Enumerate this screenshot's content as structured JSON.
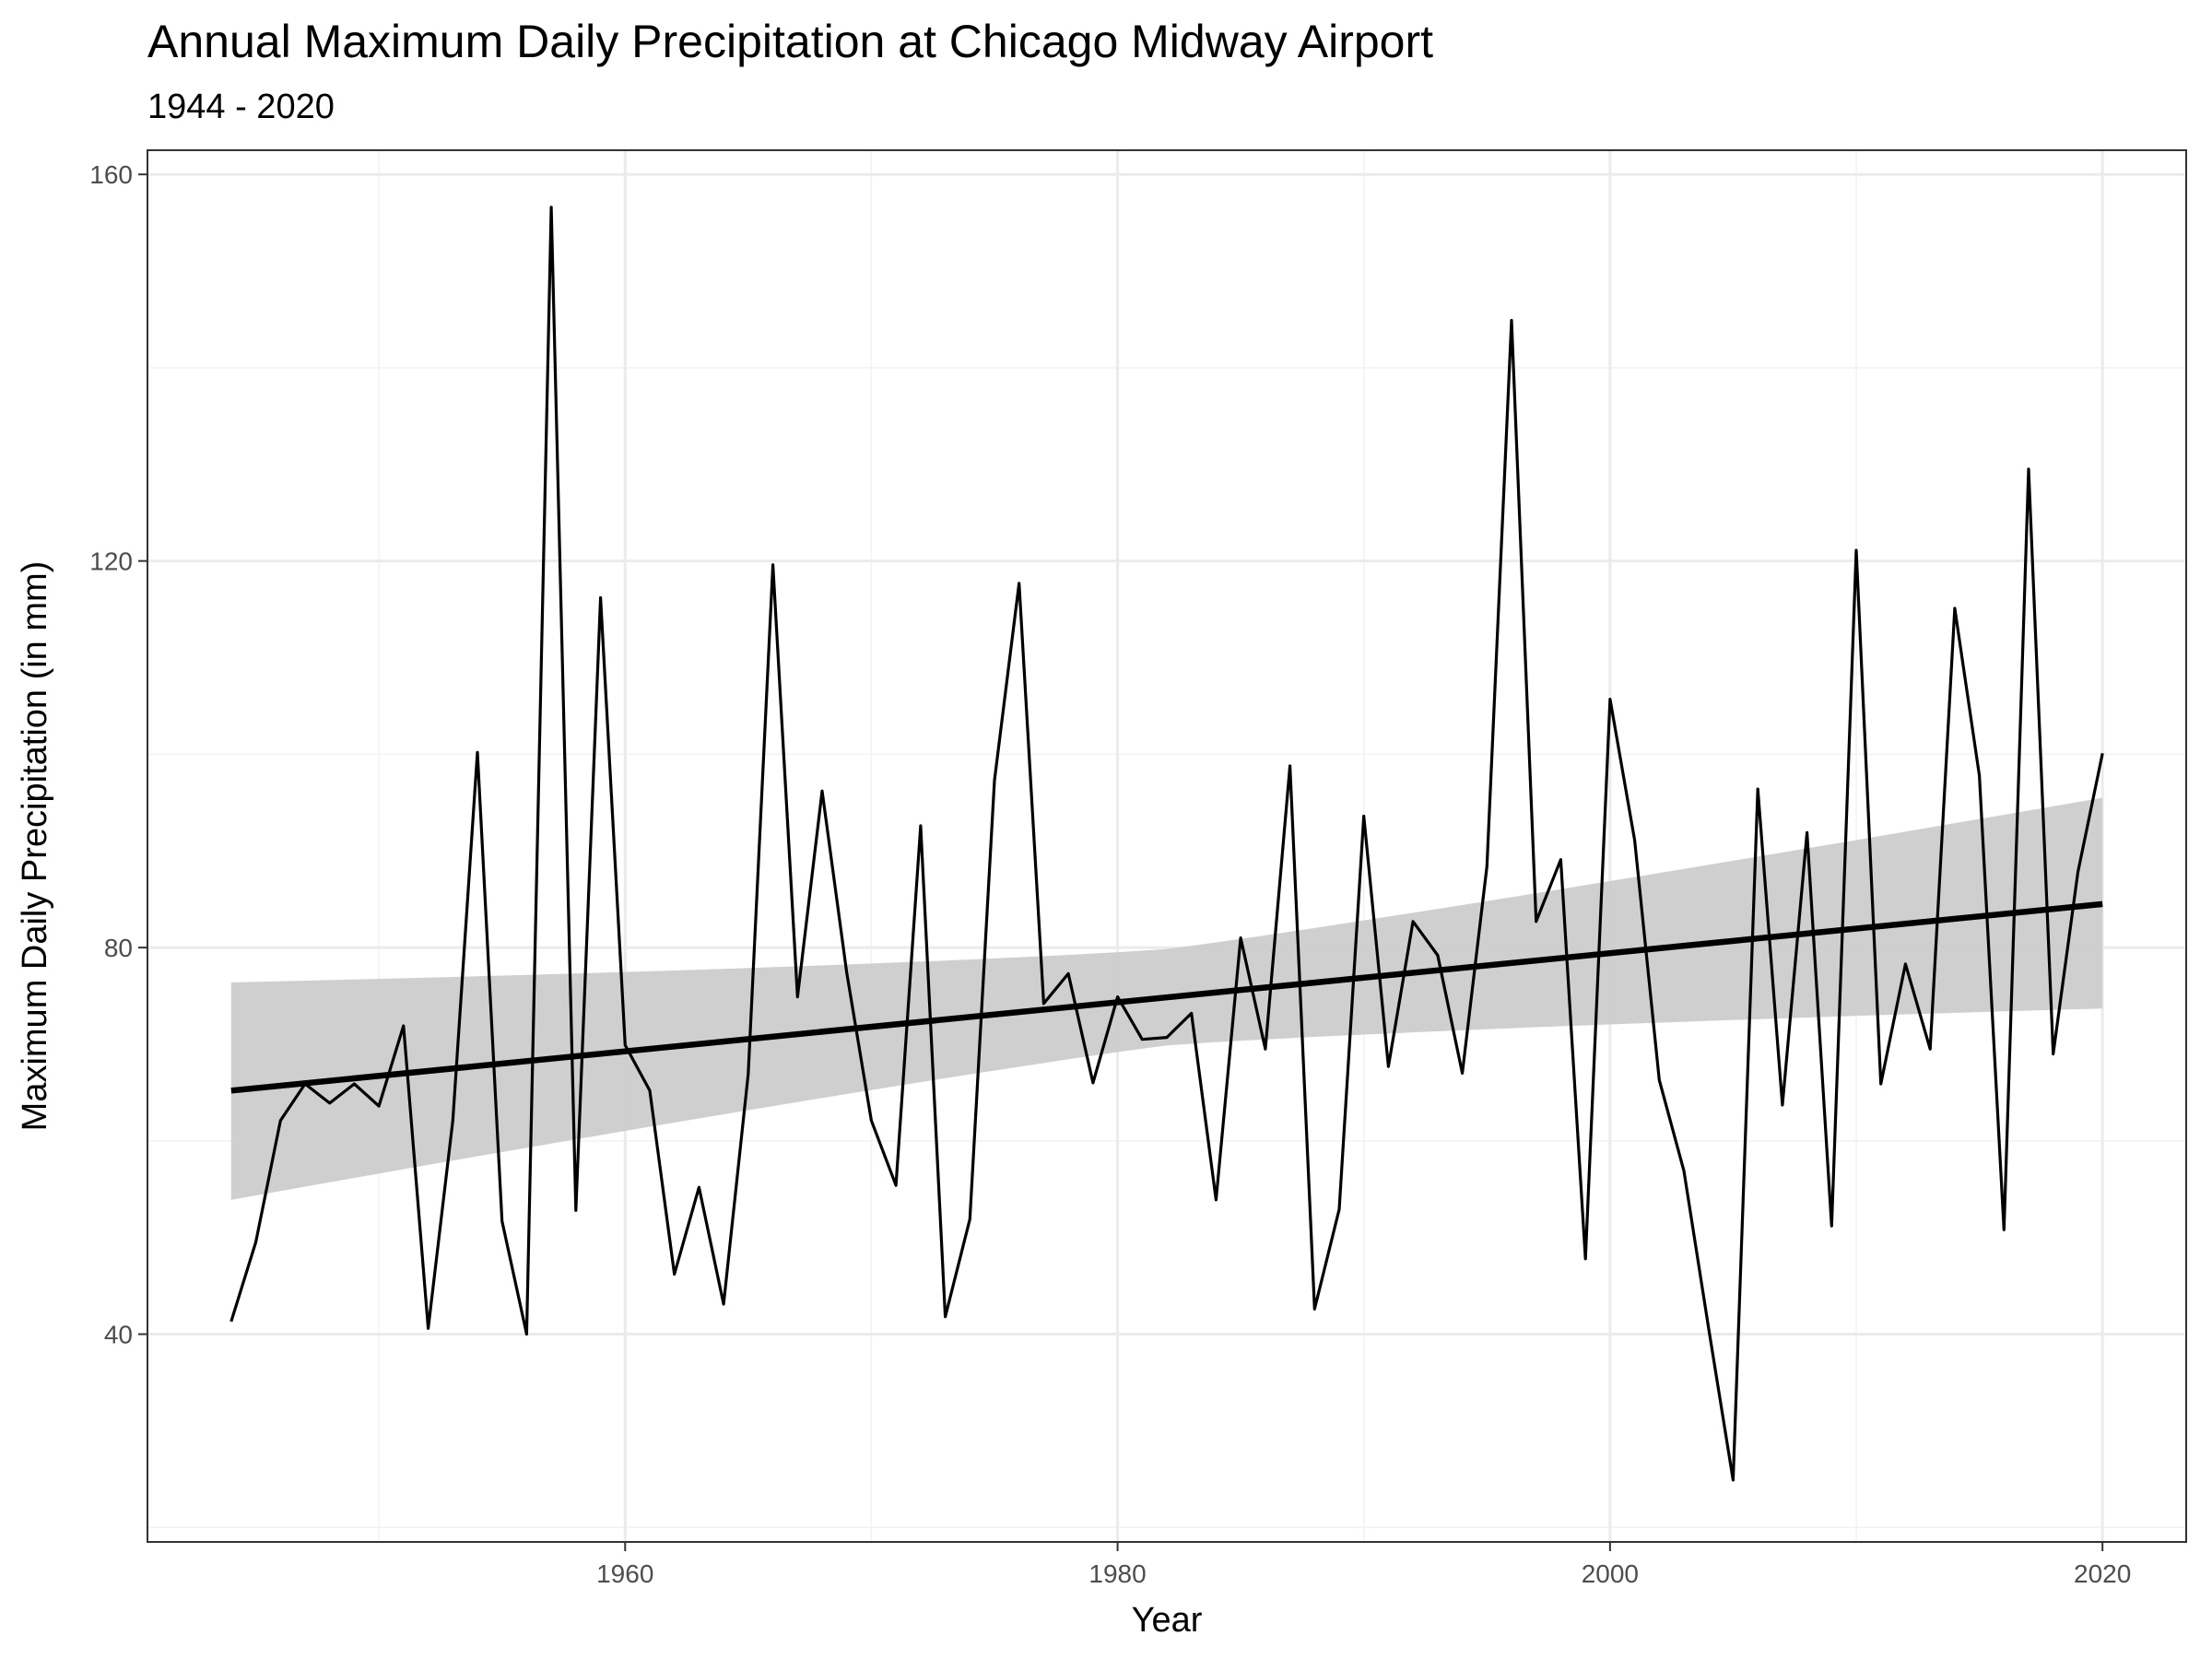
{
  "chart_data": {
    "type": "line",
    "title": "Annual Maximum Daily Precipitation at Chicago Midway Airport",
    "subtitle": "1944 - 2020",
    "xlabel": "Year",
    "ylabel": "Maximum Daily Precipitation (in mm)",
    "xlim": [
      1940.6,
      2023.4
    ],
    "ylim": [
      18.5,
      162.5
    ],
    "x_ticks": [
      1960,
      1980,
      2000,
      2020
    ],
    "y_ticks": [
      40,
      80,
      120,
      160
    ],
    "x_minor": [
      1950,
      1970,
      1990,
      2010
    ],
    "y_minor": [
      20,
      60,
      100,
      140
    ],
    "grid": true,
    "legend": "none",
    "colors": {
      "line": "#000000",
      "trend": "#000000",
      "ribbon": "#cccccc",
      "grid_major": "#ebebeb",
      "grid_minor": "#f2f2f2",
      "panel_border": "#333333"
    },
    "series": [
      {
        "x": [
          1944,
          1945,
          1946,
          1947,
          1948,
          1949,
          1950,
          1951,
          1952,
          1953,
          1954,
          1955,
          1956,
          1957,
          1958,
          1959,
          1960,
          1961,
          1962,
          1963,
          1964,
          1965,
          1966,
          1967,
          1968,
          1969,
          1970,
          1971,
          1972,
          1973,
          1974,
          1975,
          1976,
          1977,
          1978,
          1979,
          1980,
          1981,
          1982,
          1983,
          1984,
          1985,
          1986,
          1987,
          1988,
          1989,
          1990,
          1991,
          1992,
          1993,
          1994,
          1995,
          1996,
          1997,
          1998,
          1999,
          2000,
          2001,
          2002,
          2003,
          2004,
          2005,
          2006,
          2007,
          2008,
          2009,
          2010,
          2011,
          2012,
          2013,
          2014,
          2015,
          2016,
          2017,
          2018,
          2019,
          2020
        ],
        "y": [
          41.3,
          49.5,
          62.1,
          65.9,
          63.9,
          65.9,
          63.6,
          71.9,
          40.6,
          62.1,
          100.2,
          51.7,
          40.0,
          156.6,
          52.8,
          116.2,
          69.9,
          65.2,
          46.2,
          55.2,
          43.1,
          66.9,
          119.6,
          74.9,
          96.2,
          77.4,
          62.1,
          55.4,
          92.6,
          41.8,
          51.9,
          97.3,
          117.7,
          74.2,
          77.3,
          66.0,
          74.9,
          70.5,
          70.7,
          73.2,
          53.9,
          81.0,
          69.5,
          98.8,
          42.6,
          52.9,
          93.6,
          67.7,
          82.7,
          79.2,
          67.0,
          88.4,
          144.9,
          82.7,
          89.1,
          47.8,
          105.7,
          91.1,
          66.3,
          56.9,
          40.7,
          24.9,
          96.4,
          63.7,
          91.9,
          51.2,
          121.1,
          65.9,
          78.3,
          69.5,
          115.1,
          97.8,
          50.8,
          129.5,
          69.0,
          87.8,
          100.1
        ]
      }
    ],
    "trend": {
      "x": [
        1944,
        2020
      ],
      "y": [
        65.2,
        84.5
      ],
      "ribbon_lower": [
        53.9,
        73.7
      ],
      "ribbon_upper": [
        76.4,
        95.5
      ]
    }
  }
}
